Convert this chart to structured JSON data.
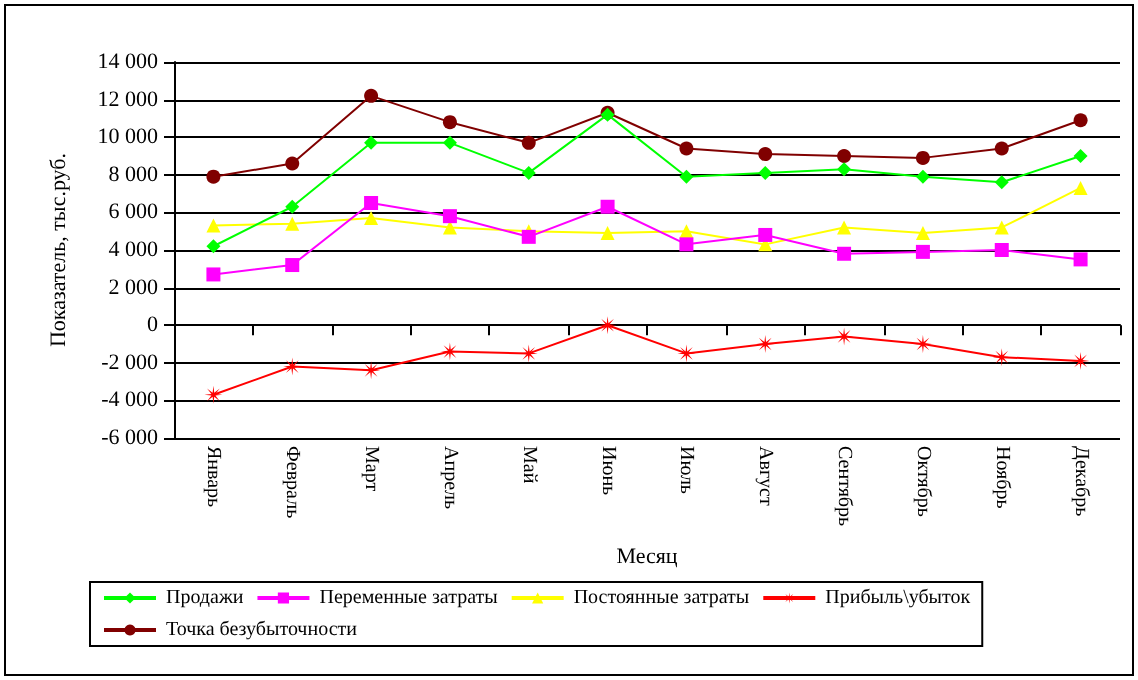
{
  "chart_data": {
    "type": "line",
    "xlabel": "Месяц",
    "ylabel": "Показатель, тыс.руб.",
    "categories": [
      "Январь",
      "Февраль",
      "Март",
      "Апрель",
      "Май",
      "Июнь",
      "Июль",
      "Август",
      "Сентябрь",
      "Октябрь",
      "Ноябрь",
      "Декабрь"
    ],
    "series": [
      {
        "name": "Продажи",
        "color": "#00ff00",
        "marker": "diamond",
        "values": [
          4200,
          6300,
          9700,
          9700,
          8100,
          11200,
          7900,
          8100,
          8300,
          7900,
          7600,
          9000
        ]
      },
      {
        "name": "Переменные затраты",
        "color": "#ff00ff",
        "marker": "square",
        "values": [
          2700,
          3200,
          6500,
          5800,
          4700,
          6300,
          4300,
          4800,
          3800,
          3900,
          4000,
          3500
        ]
      },
      {
        "name": "Постоянные затраты",
        "color": "#ffff00",
        "marker": "triangle",
        "values": [
          5300,
          5400,
          5700,
          5200,
          5000,
          4900,
          5000,
          4300,
          5200,
          4900,
          5200,
          7300
        ]
      },
      {
        "name": "Прибыль\\убыток",
        "color": "#ff0000",
        "marker": "star",
        "values": [
          -3700,
          -2200,
          -2400,
          -1400,
          -1500,
          0,
          -1500,
          -1000,
          -600,
          -1000,
          -1700,
          -1900
        ]
      },
      {
        "name": "Точка безубыточности",
        "color": "#800000",
        "marker": "circle",
        "values": [
          7900,
          8600,
          12200,
          10800,
          9700,
          11300,
          9400,
          9100,
          9000,
          8900,
          9400,
          10900
        ]
      }
    ],
    "ylim": [
      -6000,
      14000
    ],
    "yticks": [
      {
        "value": -6000,
        "label": "-6 000"
      },
      {
        "value": -4000,
        "label": "-4 000"
      },
      {
        "value": -2000,
        "label": "-2 000"
      },
      0,
      {
        "value": 2000,
        "label": "2 000"
      },
      {
        "value": 4000,
        "label": "4 000"
      },
      {
        "value": 6000,
        "label": "6 000"
      },
      {
        "value": 8000,
        "label": "8 000"
      },
      {
        "value": 10000,
        "label": "10 000"
      },
      {
        "value": 12000,
        "label": "12 000"
      },
      {
        "value": 14000,
        "label": "14 000"
      }
    ],
    "grid": "y",
    "legend": "bottom",
    "line_style": "solid"
  }
}
